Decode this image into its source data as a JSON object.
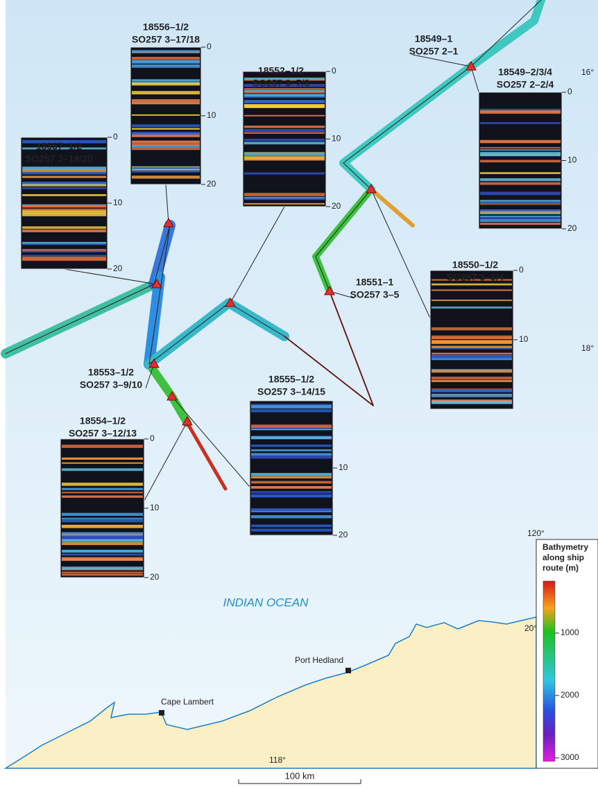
{
  "map": {
    "lat_labels": [
      "16°",
      "18°",
      "20°"
    ],
    "lon_labels": [
      "118°",
      "120°"
    ],
    "ocean_label": "INDIAN OCEAN",
    "places": [
      "Port Hedland",
      "Cape Lambert"
    ],
    "scale_label": "100 km"
  },
  "stations": [
    {
      "id": "18557–1/2",
      "core": "SO257 3–19/20",
      "depth_ticks": [
        0,
        10,
        20
      ]
    },
    {
      "id": "18556–1/2",
      "core": "SO257 3–17/18",
      "depth_ticks": [
        0,
        10,
        20
      ]
    },
    {
      "id": "18552–1/2",
      "core": "SO257 3–7/8",
      "depth_ticks": [
        0,
        10,
        20
      ]
    },
    {
      "id": "18549–1",
      "core": "SO257 2–1"
    },
    {
      "id": "18549–2/3/4",
      "core": "SO257 2–2/4",
      "depth_ticks": [
        0,
        10,
        20
      ]
    },
    {
      "id": "18550–1/2",
      "core": "SO257 3–3/4",
      "depth_ticks": [
        0,
        10
      ]
    },
    {
      "id": "18551–1",
      "core": "SO257 3–5"
    },
    {
      "id": "18553–1/2",
      "core": "SO257 3–9/10"
    },
    {
      "id": "18555–1/2",
      "core": "SO257 3–14/15",
      "depth_ticks": [
        10,
        20
      ]
    },
    {
      "id": "18554–1/2",
      "core": "SO257 3–12/13",
      "depth_ticks": [
        0,
        10,
        20
      ]
    }
  ],
  "legend": {
    "title": [
      "Bathymetry",
      "along ship",
      "route (m)"
    ],
    "ticks": [
      1000,
      2000,
      3000
    ]
  }
}
